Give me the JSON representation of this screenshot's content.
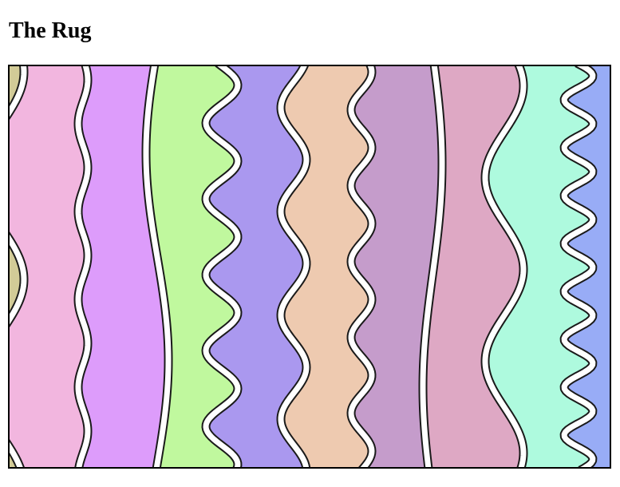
{
  "page": {
    "title": "The Rug"
  },
  "rug": {
    "colors": [
      "#d2cb97",
      "#f2b6df",
      "#dd9cfb",
      "#c0f89e",
      "#aa98ef",
      "#eecab0",
      "#c59ccb",
      "#dea8c4",
      "#aefade",
      "#98acf6"
    ],
    "separator_style": "white band outlined in black"
  }
}
